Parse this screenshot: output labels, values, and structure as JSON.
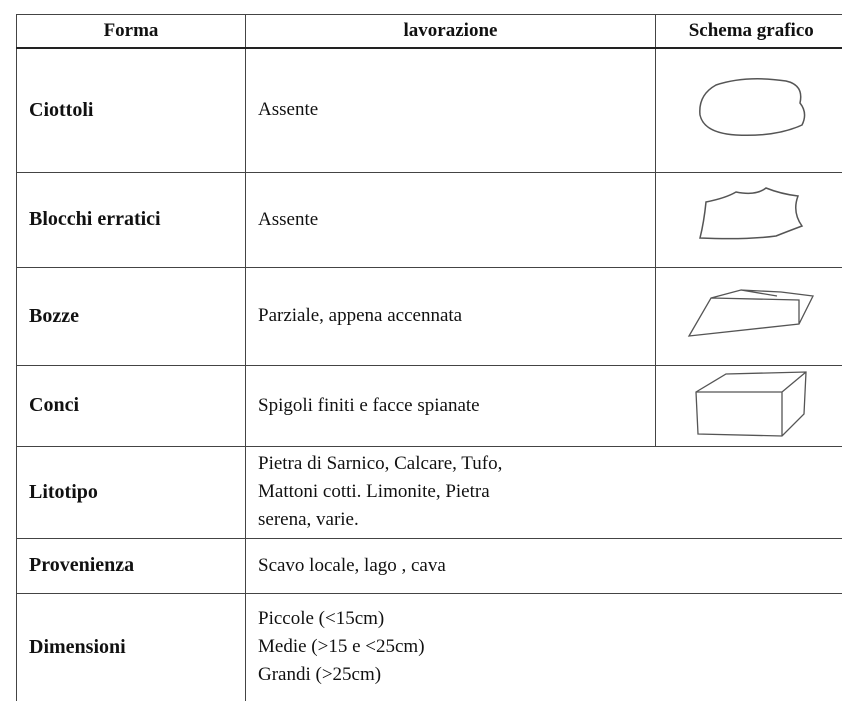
{
  "table": {
    "header": [
      "Forma",
      "lavorazione",
      "Schema grafico"
    ],
    "rows": [
      {
        "forma": "Ciottoli",
        "lavorazione": [
          "Assente"
        ]
      },
      {
        "forma": "Blocchi erratici",
        "lavorazione": [
          "Assente"
        ]
      },
      {
        "forma": "Bozze",
        "lavorazione": [
          "Parziale, appena accennata"
        ]
      },
      {
        "forma": "Conci",
        "lavorazione": [
          "Spigoli finiti e facce spianate"
        ]
      },
      {
        "forma": "Litotipo",
        "lavorazione": [
          "Pietra di Sarnico, Calcare, Tufo,",
          "Mattoni cotti. Limonite, Pietra",
          "serena, varie."
        ]
      },
      {
        "forma": "Provenienza",
        "lavorazione": [
          "Scavo locale, lago , cava"
        ]
      },
      {
        "forma": "Dimensioni",
        "lavorazione": [
          "Piccole  (<15cm)",
          "Medie   (>15 e  <25cm)",
          "Grandi   (>25cm)"
        ]
      }
    ]
  }
}
